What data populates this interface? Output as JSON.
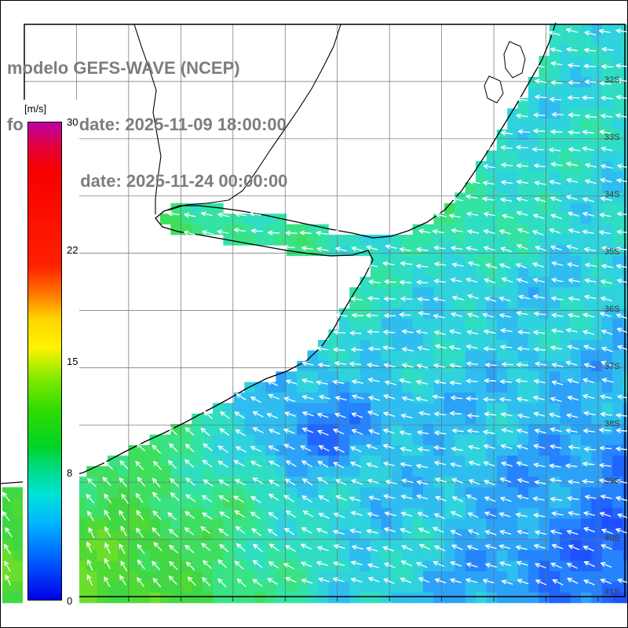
{
  "title": {
    "line1": "modelo GEFS-WAVE (NCEP)",
    "line2": "forecast date: 2025-11-09 18:00:00",
    "line3": "valid date: 2025-11-24 00:00:00",
    "color": "#7d7d7d"
  },
  "colorbar": {
    "unit": "[m/s]",
    "ticks": [
      "30",
      "22",
      "15",
      "8",
      "0"
    ],
    "gradient": [
      [
        "0%",
        "#bc00a8"
      ],
      [
        "5%",
        "#e2003c"
      ],
      [
        "10%",
        "#f70000"
      ],
      [
        "30%",
        "#ff2000"
      ],
      [
        "36%",
        "#ff7700"
      ],
      [
        "41%",
        "#ffd300"
      ],
      [
        "47%",
        "#fff200"
      ],
      [
        "50%",
        "#c8f000"
      ],
      [
        "54%",
        "#7de800"
      ],
      [
        "60%",
        "#31dc00"
      ],
      [
        "68%",
        "#00d428"
      ],
      [
        "73%",
        "#00dc8c"
      ],
      [
        "78%",
        "#00e2d8"
      ],
      [
        "84%",
        "#00b4ff"
      ],
      [
        "91%",
        "#0064ff"
      ],
      [
        "100%",
        "#0000e8"
      ]
    ]
  },
  "map": {
    "lat_labels": [
      "32S",
      "33S",
      "34S",
      "35S",
      "36S",
      "37S",
      "38S",
      "39S",
      "40S",
      "41S"
    ],
    "colors": {
      "land": "#ffffff",
      "coast": "#000000",
      "frame": "#000000",
      "grid": "#6e6e6e",
      "arrow": "#ffffff",
      "ocean_palette": [
        [
          5,
          "#1e50ff"
        ],
        [
          6,
          "#2173ff"
        ],
        [
          7,
          "#2a9bfa"
        ],
        [
          8,
          "#2fbdf0"
        ],
        [
          9,
          "#2fd8d8"
        ],
        [
          10,
          "#2fe2b4"
        ],
        [
          11,
          "#38e48c"
        ],
        [
          12,
          "#3ede5f"
        ],
        [
          13,
          "#40d53c"
        ],
        [
          14,
          "#59dc2f"
        ],
        [
          15,
          "#83e228"
        ]
      ]
    }
  }
}
